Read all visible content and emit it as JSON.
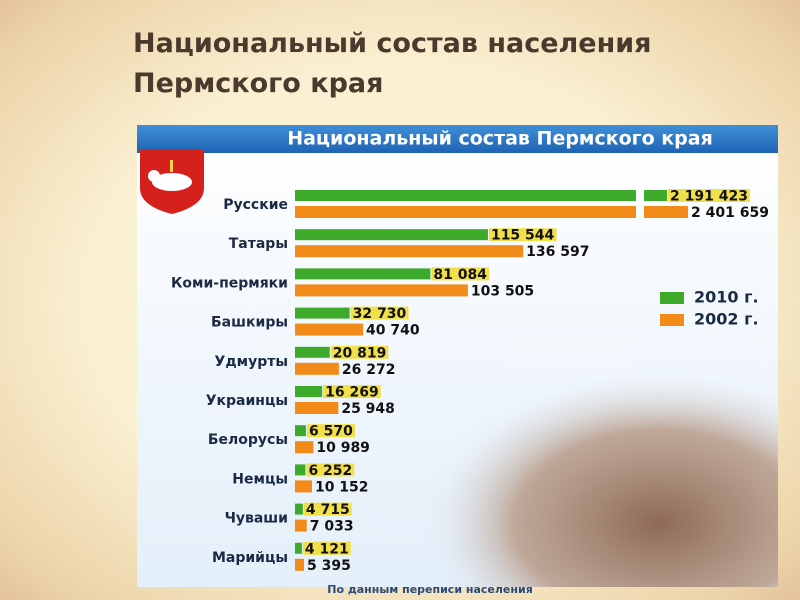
{
  "slide": {
    "title": "Национальный состав населения Пермского края"
  },
  "chart_data": {
    "type": "bar",
    "orientation": "horizontal",
    "title": "Национальный состав Пермского края",
    "categories": [
      "Русские",
      "Татары",
      "Коми-пермяки",
      "Башкиры",
      "Удмурты",
      "Украинцы",
      "Белорусы",
      "Немцы",
      "Чуваши",
      "Марийцы"
    ],
    "series": [
      {
        "name": "2010 г.",
        "color": "#3daa2c",
        "values": [
          2191423,
          115544,
          81084,
          32730,
          20819,
          16269,
          6570,
          6252,
          4715,
          4121
        ],
        "value_labels": [
          "2 191 423",
          "115 544",
          "81 084",
          "32 730",
          "20 819",
          "16 269",
          "6 570",
          "6 252",
          "4 715",
          "4 121"
        ]
      },
      {
        "name": "2002 г.",
        "color": "#f28a1a",
        "values": [
          2401659,
          136597,
          103505,
          40740,
          26272,
          25948,
          10989,
          10152,
          7033,
          5395
        ],
        "value_labels": [
          "2 401 659",
          "136 597",
          "103 505",
          "40 740",
          "26 272",
          "25 948",
          "10 989",
          "10 152",
          "7 033",
          "5 395"
        ]
      }
    ],
    "footnote": "По данным переписи населения"
  }
}
